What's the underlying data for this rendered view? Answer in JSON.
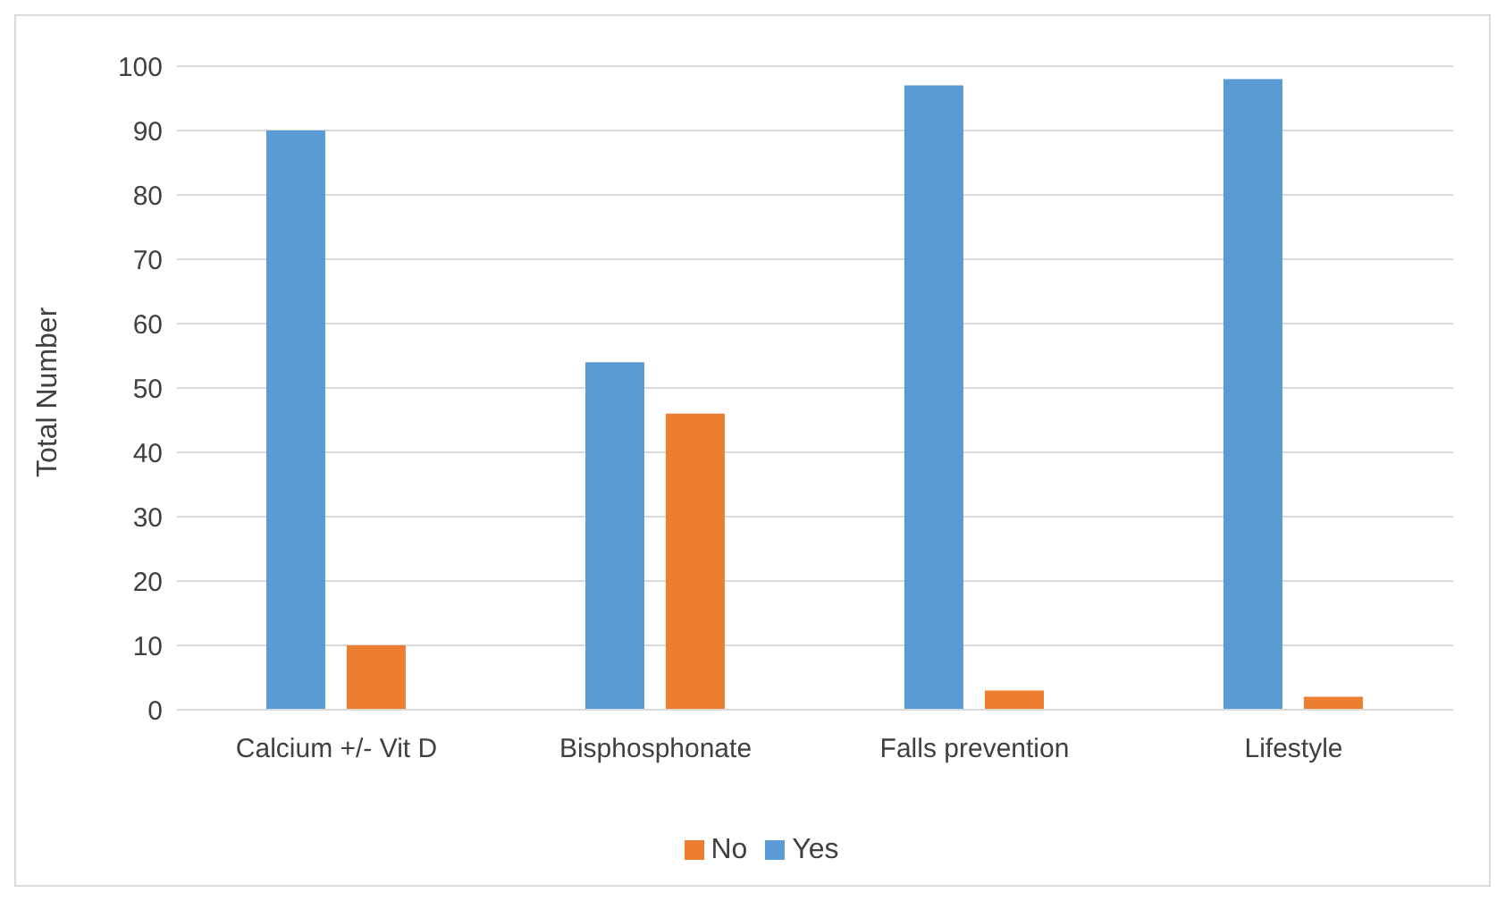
{
  "chart_data": {
    "type": "bar",
    "ylabel": "Total Number",
    "categories": [
      "Calcium +/- Vit D",
      "Bisphosphonate",
      "Falls prevention",
      "Lifestyle"
    ],
    "series": [
      {
        "name": "Yes",
        "color": "#5b9bd5",
        "values": [
          90,
          54,
          97,
          98
        ]
      },
      {
        "name": "No",
        "color": "#ed7d31",
        "values": [
          10,
          46,
          3,
          2
        ]
      }
    ],
    "ylim": [
      0,
      100
    ],
    "yticks": [
      0,
      10,
      20,
      30,
      40,
      50,
      60,
      70,
      80,
      90,
      100
    ],
    "grid": "y",
    "legend": "bottom"
  }
}
